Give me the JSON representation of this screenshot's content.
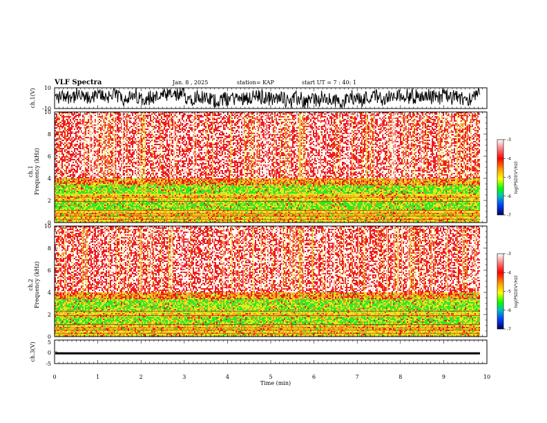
{
  "header": {
    "title": "VLF Spectra",
    "date": "Jan. 8 , 2025",
    "station": "station= KAP",
    "start": "start  UT =   7 : 40: 1"
  },
  "chart_data": [
    {
      "type": "line",
      "name": "ch1-waveform",
      "ylabel": "ch.1(V)",
      "ylim": [
        -10,
        10
      ],
      "yticks": [
        "10",
        "-10"
      ],
      "xlim": [
        0,
        10
      ]
    },
    {
      "type": "heatmap",
      "name": "ch1-spectrogram",
      "ylabel_top": "ch.1",
      "ylabel": "Frequency  (kHz)",
      "ylim": [
        0,
        10
      ],
      "yticks": [
        "0",
        "2",
        "4",
        "6",
        "8",
        "10"
      ],
      "xlim": [
        0,
        10
      ],
      "bands_khz": [
        {
          "from": 0,
          "to": 0.5,
          "level": "yellow"
        },
        {
          "from": 0.5,
          "to": 1.1,
          "level": "yellow"
        },
        {
          "from": 1.1,
          "to": 2.0,
          "level": "green"
        },
        {
          "from": 2.0,
          "to": 2.6,
          "level": "yellow"
        },
        {
          "from": 2.6,
          "to": 3.4,
          "level": "green"
        },
        {
          "from": 3.4,
          "to": 4.0,
          "level": "orange"
        },
        {
          "from": 4.0,
          "to": 10.0,
          "level": "red"
        }
      ],
      "colorbar": {
        "label": "log(PSD)(V²/Hz)",
        "ticks": [
          "-3",
          "-4",
          "-5",
          "-6",
          "-7"
        ],
        "range": [
          -7,
          -3
        ]
      }
    },
    {
      "type": "heatmap",
      "name": "ch2-spectrogram",
      "ylabel_top": "ch.2",
      "ylabel": "Frequency  (kHz)",
      "ylim": [
        0,
        10
      ],
      "yticks": [
        "0",
        "2",
        "4",
        "6",
        "8",
        "10"
      ],
      "xlim": [
        0,
        10
      ],
      "bands_khz": [
        {
          "from": 0,
          "to": 0.5,
          "level": "yellow"
        },
        {
          "from": 0.5,
          "to": 1.0,
          "level": "yellow"
        },
        {
          "from": 1.0,
          "to": 1.8,
          "level": "green"
        },
        {
          "from": 1.8,
          "to": 2.2,
          "level": "yellow"
        },
        {
          "from": 2.2,
          "to": 3.4,
          "level": "green"
        },
        {
          "from": 3.4,
          "to": 4.0,
          "level": "orange"
        },
        {
          "from": 4.0,
          "to": 10.0,
          "level": "red"
        }
      ],
      "colorbar": {
        "label": "log(PSD)(V²/Hz)",
        "ticks": [
          "-3",
          "-4",
          "-5",
          "-6",
          "-7"
        ],
        "range": [
          -7,
          -3
        ]
      }
    },
    {
      "type": "line",
      "name": "ch3-waveform",
      "ylabel": "ch.3(V)",
      "ylim": [
        -5,
        5
      ],
      "yticks": [
        "5",
        "0",
        "-5"
      ],
      "level_band": [
        -1.1,
        -0.2
      ],
      "xlim": [
        0,
        10
      ]
    }
  ],
  "xaxis": {
    "label": "Time  (min)",
    "ticks": [
      "0",
      "1",
      "2",
      "3",
      "4",
      "5",
      "6",
      "7",
      "8",
      "9",
      "10"
    ],
    "data_end": 9.84
  },
  "colors": {
    "red": "#ee1c1c",
    "orange": "#f59a1e",
    "yellow": "#e8e81a",
    "green": "#2ee82a",
    "background": "#ffffff"
  }
}
